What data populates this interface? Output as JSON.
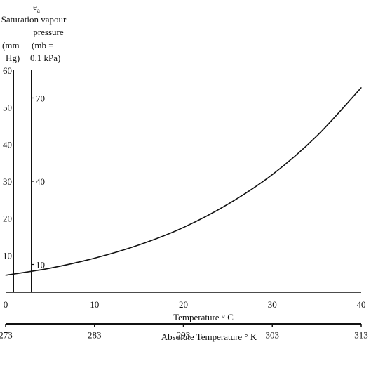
{
  "chart_data": {
    "type": "line",
    "title_symbol": "e",
    "title_symbol_sub": "a",
    "ytitle_lines": [
      "Saturation vapour",
      "pressure"
    ],
    "y_mm_title": [
      "(mm",
      "Hg)"
    ],
    "y_mb_title": [
      "(mb =",
      "0.1 kPa)"
    ],
    "xlabel": "Temperature ° C",
    "x2label": "Absolute Temperature ° K",
    "xlim": [
      0,
      40
    ],
    "ylim_mmhg": [
      0,
      60
    ],
    "x_ticks": [
      "0",
      "10",
      "20",
      "30",
      "40"
    ],
    "y_mmhg_ticks": [
      "10",
      "20",
      "30",
      "40",
      "50",
      "60"
    ],
    "y_mb_ticks": [
      "10",
      "40",
      "70"
    ],
    "x2_ticks": [
      "273",
      "283",
      "293",
      "303",
      "313"
    ],
    "series": [
      {
        "x": [
          0,
          5,
          10,
          15,
          20,
          25,
          30,
          35,
          40
        ],
        "y": [
          4.6,
          6.5,
          9.2,
          12.8,
          17.5,
          23.8,
          31.8,
          42.2,
          55.3
        ]
      }
    ]
  }
}
